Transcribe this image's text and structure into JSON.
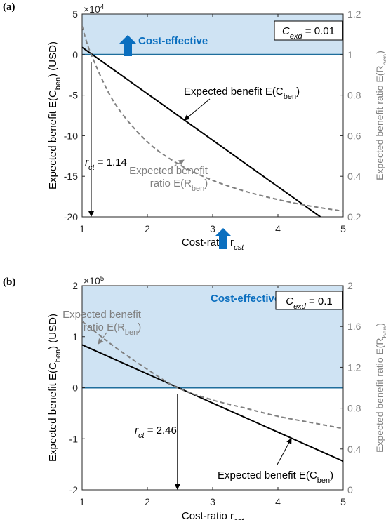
{
  "chart_data": [
    {
      "panel_label": "(a)",
      "type": "line",
      "xlabel": "Cost-ratio r",
      "xlabel_sub": "cst",
      "xlim": [
        1,
        5
      ],
      "x_ticks": [
        1,
        2,
        3,
        4,
        5
      ],
      "ylabel": {
        "pre": "Expected benefit E(C",
        "sub": "ben",
        "post": ") (USD)"
      },
      "ylim": [
        -20,
        5
      ],
      "y_ticks": [
        5,
        0,
        -5,
        -10,
        -15,
        -20
      ],
      "y_exponent": {
        "base": "×10",
        "power": "4"
      },
      "y2label": {
        "pre": "Expected benefit ratio E(R",
        "sub": "ben",
        "post": ")"
      },
      "y2lim": [
        0.2,
        1.2
      ],
      "y2_ticks": [
        1.2,
        1,
        0.8,
        0.6,
        0.4,
        0.2
      ],
      "colors": {
        "benefit": "#000000",
        "ratio": "#808080",
        "region": "#cfe3f3",
        "threshold": "#1f6e9c",
        "arrow": "#0b6fbf"
      },
      "series": [
        {
          "name": "Expected benefit E(Cben)",
          "axis": "left",
          "style": "solid",
          "x": [
            1,
            4.65
          ],
          "y": [
            0.9,
            -20
          ]
        },
        {
          "name": "Expected benefit ratio E(Rben)",
          "axis": "right",
          "style": "dashed",
          "x": [
            1,
            1.14,
            1.5,
            2,
            2.5,
            3,
            3.5,
            4,
            4.5,
            5
          ],
          "y": [
            1.14,
            1.0,
            0.76,
            0.57,
            0.456,
            0.38,
            0.326,
            0.285,
            0.253,
            0.228
          ]
        }
      ],
      "threshold": {
        "label_pre": "r",
        "label_sub": "ct",
        "label_post": " = 1.14",
        "x": 1.14
      },
      "region_label": "Cost-effective",
      "cexd": {
        "pre": "C",
        "sub": "exd",
        "post": " = 0.01"
      },
      "annotations": {
        "benefit": {
          "pre": "Expected benefit E(C",
          "sub": "ben",
          "post": ")"
        },
        "ratio_line1": "Expected benefit",
        "ratio_line2": {
          "pre": "ratio E(R",
          "sub": "ben",
          "post": ")"
        }
      }
    },
    {
      "panel_label": "(b)",
      "type": "line",
      "xlabel": "Cost-ratio r",
      "xlabel_sub": "cst",
      "xlim": [
        1,
        5
      ],
      "x_ticks": [
        1,
        2,
        3,
        4,
        5
      ],
      "ylabel": {
        "pre": "Expected benefit E(C",
        "sub": "ben",
        "post": ") (USD)"
      },
      "ylim": [
        -2,
        2
      ],
      "y_ticks": [
        2,
        1,
        0,
        -1,
        -2
      ],
      "y_exponent": {
        "base": "×10",
        "power": "5"
      },
      "y2label": {
        "pre": "Expected benefit ratio E(R",
        "sub": "ben",
        "post": ")"
      },
      "y2lim": [
        0,
        2
      ],
      "y2_ticks": [
        2,
        1.6,
        1.2,
        0.8,
        0.4,
        0
      ],
      "colors": {
        "benefit": "#000000",
        "ratio": "#808080",
        "region": "#cfe3f3",
        "threshold": "#1f6e9c",
        "arrow": "#0b6fbf"
      },
      "series": [
        {
          "name": "Expected benefit E(Cben)",
          "axis": "left",
          "style": "solid",
          "x": [
            1,
            5
          ],
          "y": [
            0.84,
            -1.44
          ]
        },
        {
          "name": "Expected benefit ratio E(Rben)",
          "axis": "right",
          "style": "dashed",
          "x": [
            1,
            1.5,
            2,
            2.46,
            3,
            3.5,
            4,
            4.5,
            5
          ],
          "y": [
            1.65,
            1.4,
            1.18,
            1.0,
            0.88,
            0.8,
            0.72,
            0.66,
            0.6
          ]
        }
      ],
      "threshold": {
        "label_pre": "r",
        "label_sub": "ct",
        "label_post": " = 2.46",
        "x": 2.46
      },
      "region_label": "Cost-effective",
      "cexd": {
        "pre": "C",
        "sub": "exd",
        "post": " = 0.1"
      },
      "annotations": {
        "benefit": {
          "pre": "Expected benefit E(C",
          "sub": "ben",
          "post": ")"
        },
        "ratio_line1": "Expected benefit",
        "ratio_line2": {
          "pre": "ratio E(R",
          "sub": "ben",
          "post": ")"
        }
      }
    }
  ]
}
